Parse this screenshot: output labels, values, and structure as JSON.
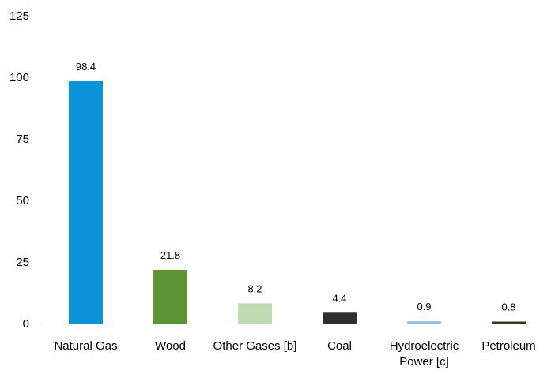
{
  "chart_data": {
    "type": "bar",
    "title": "",
    "xlabel": "",
    "ylabel": "",
    "categories": [
      [
        "Natural Gas"
      ],
      [
        "Wood"
      ],
      [
        "Other Gases [b]"
      ],
      [
        "Coal"
      ],
      [
        "Hydroelectric",
        "Power [c]"
      ],
      [
        "Petroleum"
      ]
    ],
    "values": [
      98.4,
      21.8,
      8.2,
      4.4,
      0.9,
      0.8
    ],
    "value_labels": [
      "98.4",
      "21.8",
      "8.2",
      "4.4",
      "0.9",
      "0.8"
    ],
    "colors": [
      "#0a93d8",
      "#5b9632",
      "#c2dab2",
      "#2e2e2e",
      "#8dc3df",
      "#36361e"
    ],
    "ylim": [
      0,
      125
    ],
    "yticks": [
      0,
      25,
      50,
      75,
      100,
      125
    ],
    "ytick_labels": [
      "0",
      "25",
      "50",
      "75",
      "100",
      "125"
    ],
    "grid": false,
    "legend": "none"
  }
}
